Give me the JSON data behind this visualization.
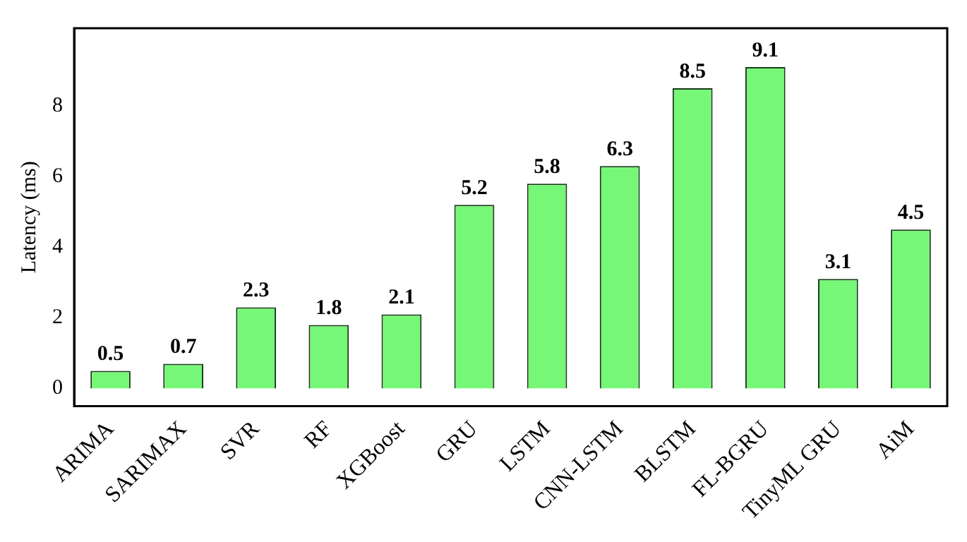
{
  "chart_data": {
    "type": "bar",
    "ylabel": "Latency (ms)",
    "categories": [
      "ARIMA",
      "SARIMAX",
      "SVR",
      "RF",
      "XGBoost",
      "GRU",
      "LSTM",
      "CNN-LSTM",
      "BLSTM",
      "FL-BGRU",
      "TinyML GRU",
      "AiM"
    ],
    "values": [
      0.5,
      0.7,
      2.3,
      1.8,
      2.1,
      5.2,
      5.8,
      6.3,
      8.5,
      9.1,
      3.1,
      4.5
    ],
    "color": "#77f777",
    "ylim": [
      -0.5,
      10.2
    ],
    "yticks": [
      0,
      2,
      4,
      6,
      8
    ],
    "grid": false,
    "data_labels": true
  }
}
